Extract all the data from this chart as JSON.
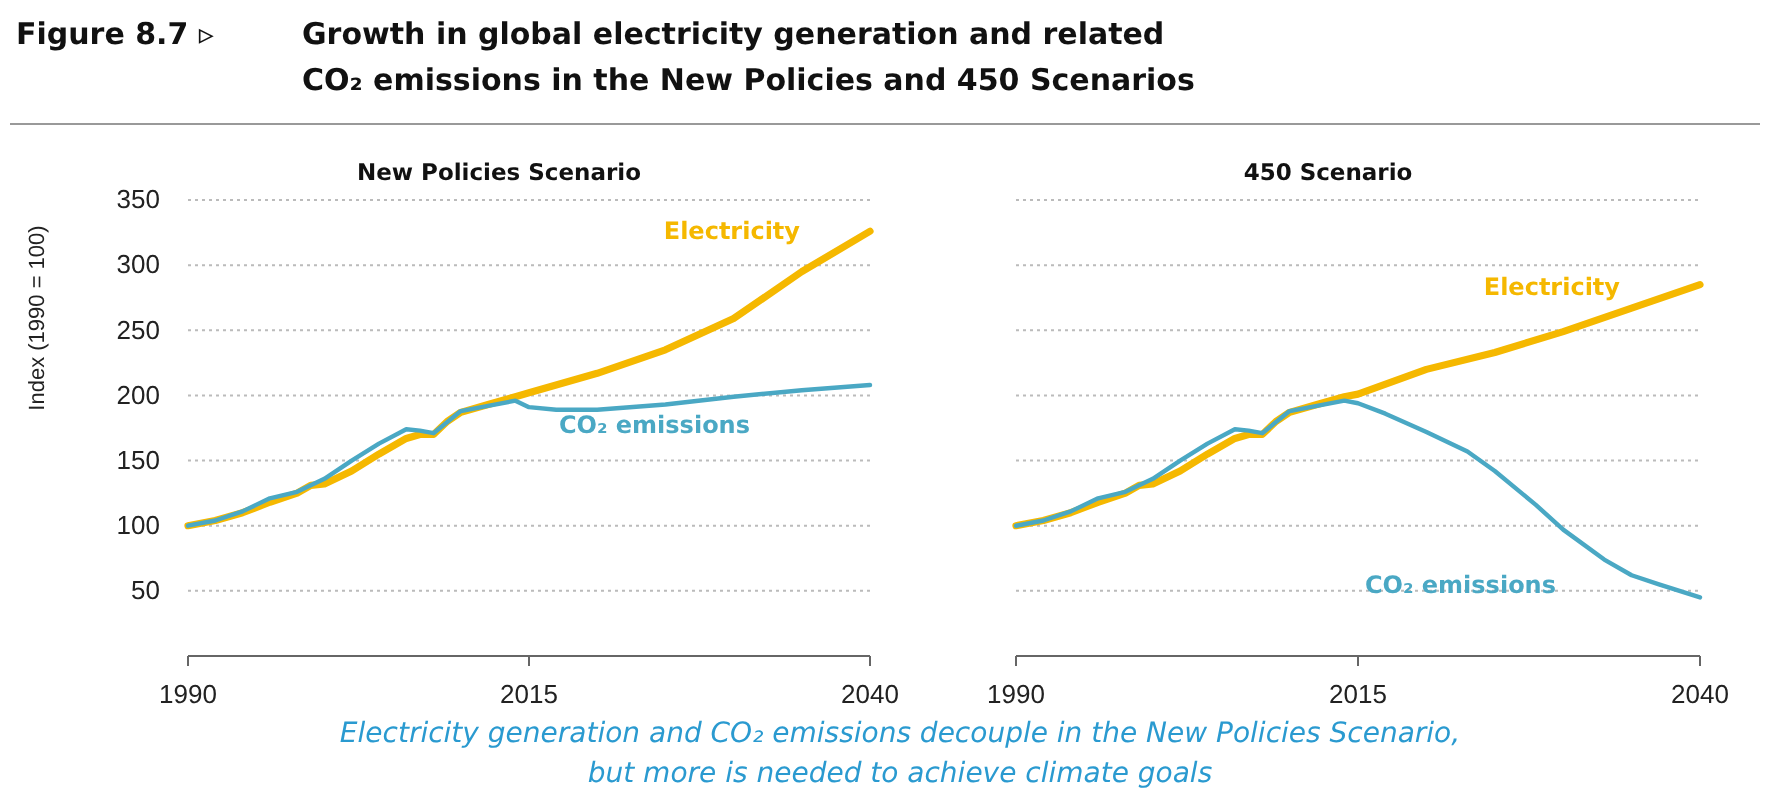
{
  "chart_data": [
    {
      "type": "line",
      "title": "New Policies Scenario",
      "ylabel": "Index (1990 = 100)",
      "xlim": [
        1990,
        2040
      ],
      "xticks": [
        1990,
        2015,
        2040
      ],
      "ylim": [
        0,
        350
      ],
      "yticks": [
        50,
        100,
        150,
        200,
        250,
        300,
        350
      ],
      "grid": "y",
      "tick_labels": "xy",
      "annotations": [
        "Figure 8.7 ▹",
        "Growth in global electricity generation and related CO₂ emissions in the New Policies and 450 Scenarios",
        "Electricity generation and CO₂ emissions decouple in the New Policies Scenario, but more is needed to achieve climate goals"
      ],
      "series": [
        {
          "name": "Electricity",
          "color": "#f5b800",
          "x": [
            1990,
            1992,
            1994,
            1996,
            1998,
            1999,
            2000,
            2002,
            2004,
            2006,
            2007,
            2008,
            2009,
            2010,
            2012,
            2014,
            2015,
            2020,
            2025,
            2030,
            2035,
            2040
          ],
          "values": [
            100,
            104,
            110,
            118,
            125,
            131,
            132,
            142,
            155,
            167,
            170,
            170,
            180,
            187,
            193,
            199,
            202,
            217,
            235,
            259,
            295,
            326
          ]
        },
        {
          "name": "CO₂ emissions",
          "color": "#4aa8c4",
          "x": [
            1990,
            1992,
            1994,
            1996,
            1998,
            2000,
            2002,
            2004,
            2006,
            2007,
            2008,
            2010,
            2012,
            2014,
            2015,
            2017,
            2020,
            2025,
            2030,
            2035,
            2040
          ],
          "values": [
            100,
            104,
            111,
            121,
            126,
            136,
            150,
            163,
            174,
            173,
            171,
            188,
            192,
            196,
            191,
            189,
            189,
            193,
            199,
            204,
            208
          ]
        }
      ]
    },
    {
      "type": "line",
      "title": "450 Scenario",
      "xlim": [
        1990,
        2040
      ],
      "xticks": [
        1990,
        2015,
        2040
      ],
      "ylim": [
        0,
        350
      ],
      "yticks": [
        50,
        100,
        150,
        200,
        250,
        300,
        350
      ],
      "grid": "y",
      "tick_labels": "x",
      "series": [
        {
          "name": "Electricity",
          "color": "#f5b800",
          "x": [
            1990,
            1992,
            1994,
            1996,
            1998,
            1999,
            2000,
            2002,
            2004,
            2006,
            2007,
            2008,
            2009,
            2010,
            2012,
            2014,
            2015,
            2020,
            2025,
            2030,
            2035,
            2040
          ],
          "values": [
            100,
            104,
            110,
            118,
            125,
            131,
            132,
            142,
            155,
            167,
            170,
            170,
            180,
            187,
            193,
            199,
            201,
            220,
            233,
            249,
            267,
            285
          ]
        },
        {
          "name": "CO₂ emissions",
          "color": "#4aa8c4",
          "x": [
            1990,
            1992,
            1994,
            1996,
            1998,
            2000,
            2002,
            2004,
            2006,
            2007,
            2008,
            2010,
            2012,
            2014,
            2015,
            2017,
            2020,
            2023,
            2025,
            2028,
            2030,
            2033,
            2035,
            2037,
            2040
          ],
          "values": [
            100,
            104,
            111,
            121,
            126,
            136,
            150,
            163,
            174,
            173,
            171,
            188,
            192,
            196,
            194,
            186,
            172,
            157,
            142,
            116,
            97,
            74,
            62,
            55,
            45
          ]
        }
      ]
    }
  ]
}
